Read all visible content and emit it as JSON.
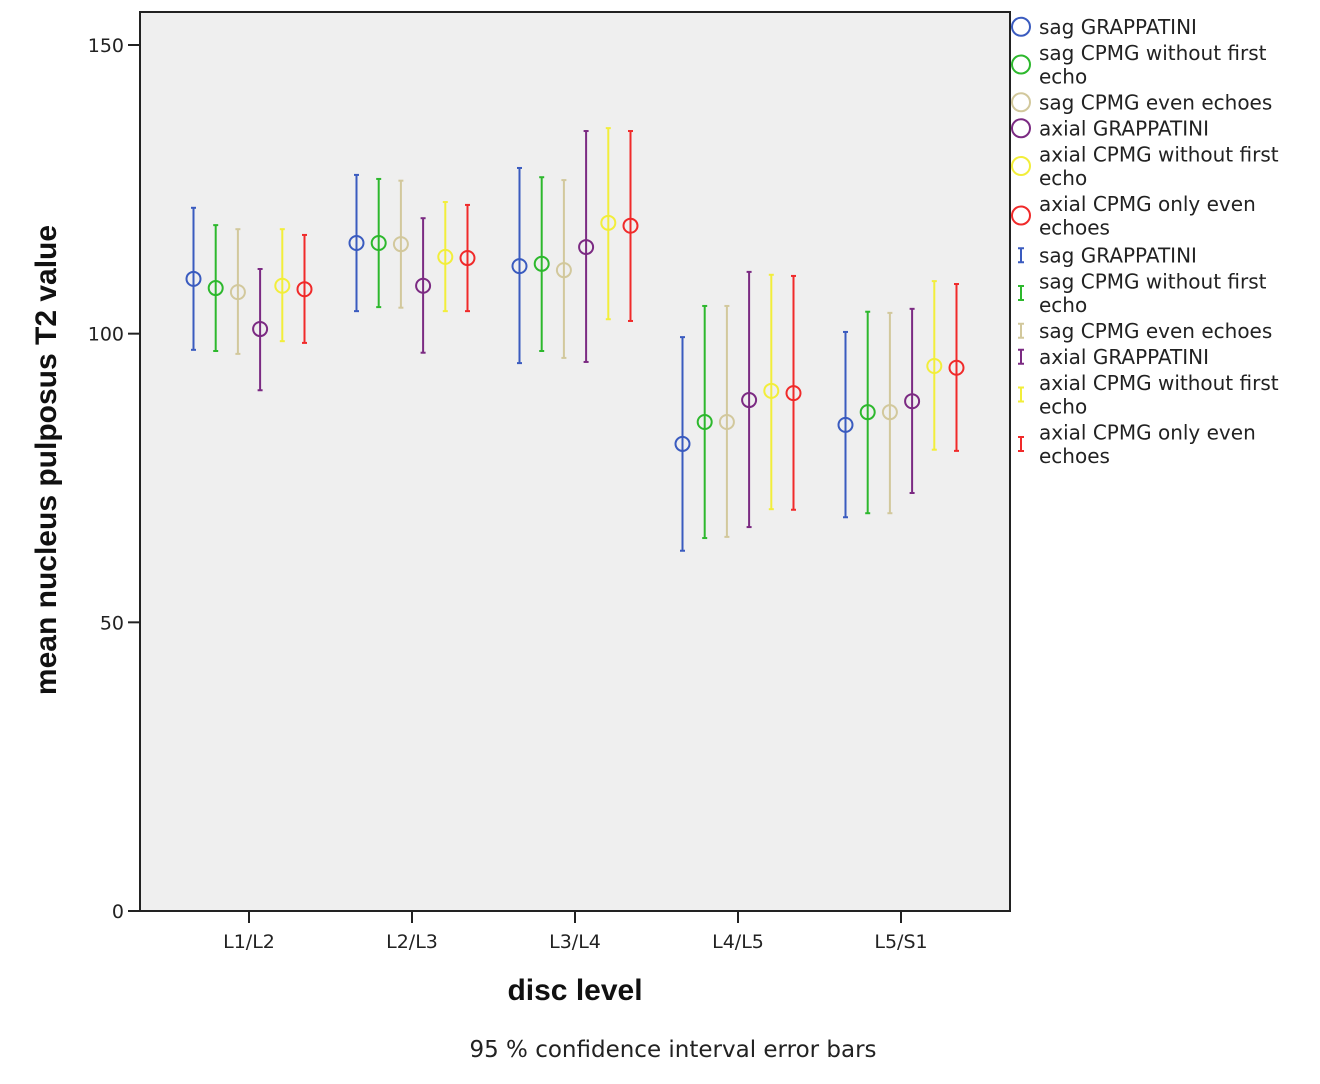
{
  "chart_data": {
    "type": "scatter",
    "subtype": "error-bar",
    "xlabel": "disc level",
    "ylabel": "mean nucleus pulposus T2 value",
    "footnote": "95 % confidence interval error bars",
    "ylim": [
      0,
      150
    ],
    "yticks": [
      0,
      50,
      100,
      150
    ],
    "categories": [
      "L1/L2",
      "L2/L3",
      "L3/L4",
      "L4/L5",
      "L5/S1"
    ],
    "grid": false,
    "legend_placement": "right",
    "series": [
      {
        "name": "sag GRAPPATINI",
        "legend_lines": [
          "sag GRAPPATINI"
        ],
        "color": "#3a5bbf",
        "mean": [
          109.5,
          115.7,
          111.7,
          80.9,
          84.2
        ],
        "upper": [
          121.8,
          127.5,
          128.7,
          99.4,
          100.3
        ],
        "lower": [
          97.2,
          103.9,
          94.9,
          62.4,
          68.2
        ]
      },
      {
        "name": "sag CPMG without first echo",
        "legend_lines": [
          "sag CPMG without first",
          "echo"
        ],
        "color": "#2db82d",
        "mean": [
          107.9,
          115.7,
          112.1,
          84.7,
          86.4
        ],
        "upper": [
          118.8,
          126.8,
          127.1,
          104.8,
          103.8
        ],
        "lower": [
          97.0,
          104.6,
          97.0,
          64.6,
          68.9
        ]
      },
      {
        "name": "sag CPMG even echoes",
        "legend_lines": [
          "sag CPMG even echoes"
        ],
        "color": "#d2c89c",
        "mean": [
          107.2,
          115.5,
          111.0,
          84.7,
          86.4
        ],
        "upper": [
          118.1,
          126.5,
          126.6,
          104.8,
          103.6
        ],
        "lower": [
          96.5,
          104.5,
          95.8,
          64.8,
          68.9
        ]
      },
      {
        "name": "axial GRAPPATINI",
        "legend_lines": [
          "axial GRAPPATINI"
        ],
        "color": "#7b2a82",
        "mean": [
          100.8,
          108.3,
          115.0,
          88.5,
          88.3
        ],
        "upper": [
          111.2,
          120.0,
          135.1,
          110.7,
          104.3
        ],
        "lower": [
          90.2,
          96.7,
          95.1,
          66.5,
          72.4
        ]
      },
      {
        "name": "axial CPMG without first echo",
        "legend_lines": [
          "axial CPMG without first",
          "echo"
        ],
        "color": "#f2ee3a",
        "mean": [
          108.3,
          113.3,
          119.2,
          90.1,
          94.4
        ],
        "upper": [
          118.1,
          122.8,
          135.6,
          110.2,
          109.1
        ],
        "lower": [
          98.7,
          103.9,
          102.5,
          69.6,
          79.9
        ]
      },
      {
        "name": "axial CPMG only even echoes",
        "legend_lines": [
          "axial CPMG only even",
          "echoes"
        ],
        "color": "#f02a2a",
        "mean": [
          107.7,
          113.1,
          118.7,
          89.7,
          94.1
        ],
        "upper": [
          117.1,
          122.3,
          135.1,
          110.0,
          108.6
        ],
        "lower": [
          98.4,
          103.9,
          102.2,
          69.5,
          79.7
        ]
      }
    ]
  }
}
